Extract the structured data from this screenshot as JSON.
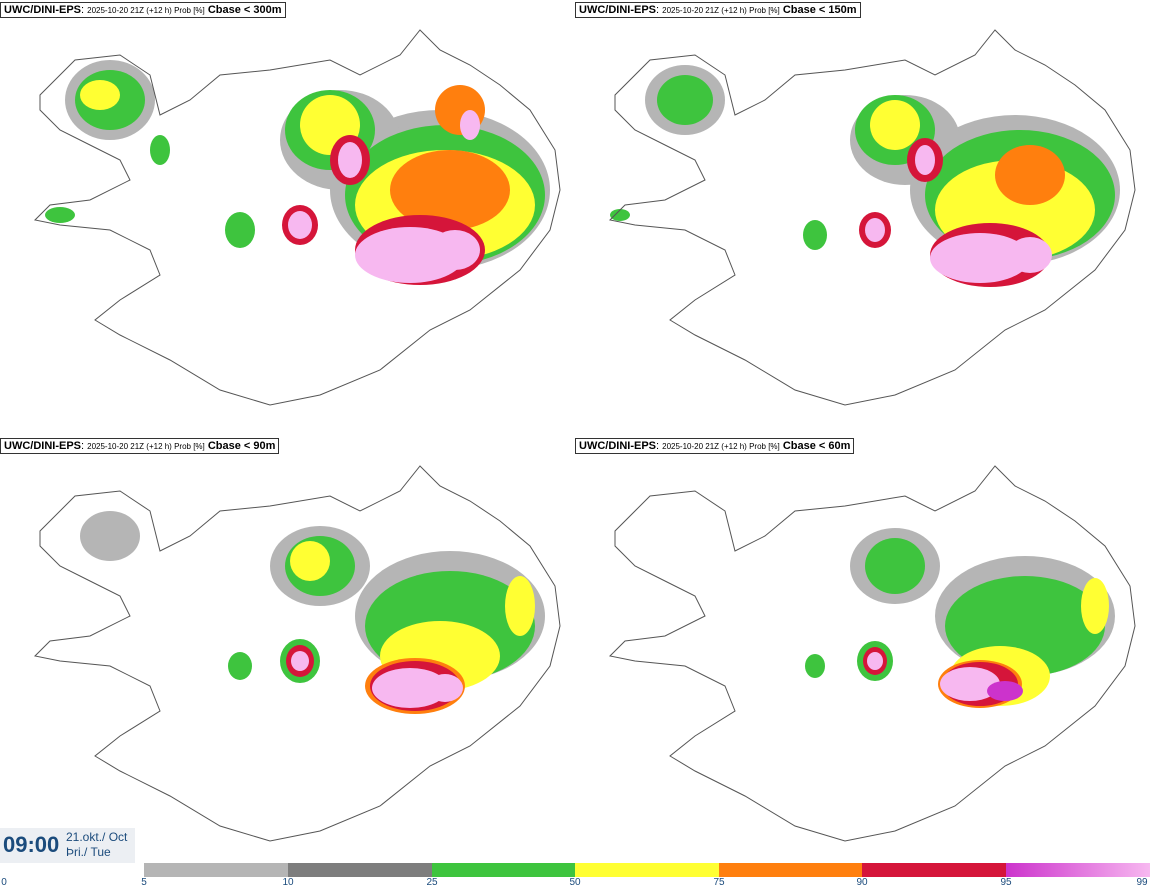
{
  "panels": [
    {
      "model": "UWC/DINI-EPS",
      "info": "2025-10-20 21Z (+12 h) Prob [%]",
      "variable": "Cbase < 300m"
    },
    {
      "model": "UWC/DINI-EPS",
      "info": "2025-10-20 21Z (+12 h) Prob [%]",
      "variable": "Cbase < 150m"
    },
    {
      "model": "UWC/DINI-EPS",
      "info": "2025-10-20 21Z (+12 h) Prob [%]",
      "variable": "Cbase < 90m"
    },
    {
      "model": "UWC/DINI-EPS",
      "info": "2025-10-20 21Z (+12 h) Prob [%]",
      "variable": "Cbase < 60m"
    }
  ],
  "valid_time": {
    "time": "09:00",
    "date_line1": "21.okt./ Oct",
    "date_line2": "Þri./ Tue"
  },
  "colorbar": {
    "ticks": [
      "0",
      "5",
      "10",
      "25",
      "50",
      "75",
      "90",
      "95",
      "99"
    ],
    "colors": [
      "#ffffff",
      "#b5b5b5",
      "#7d7d7d",
      "#3ec43e",
      "#ffff33",
      "#ff7f0e",
      "#d5153a",
      "#cc33cc",
      "#f7b8f0"
    ]
  },
  "colors": {
    "coastline": "#555555",
    "text_accent": "#1b4b7c"
  }
}
